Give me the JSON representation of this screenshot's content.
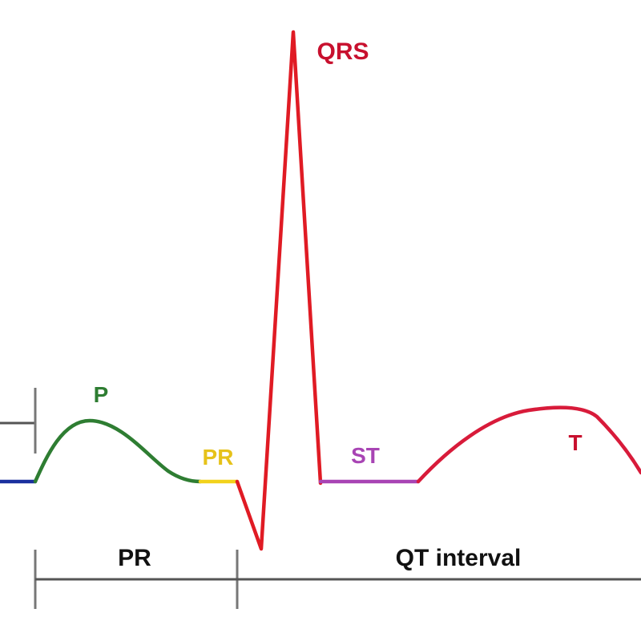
{
  "diagram": {
    "waves": {
      "baseline": {
        "color": "#1a2f9e"
      },
      "p": {
        "label": "P",
        "color": "#2e7d32"
      },
      "pr_segment": {
        "label": "PR",
        "color": "#f2d21b"
      },
      "qrs": {
        "label": "QRS",
        "color": "#e01b24"
      },
      "st_segment": {
        "label": "ST",
        "color": "#a844b4"
      },
      "t": {
        "label": "T",
        "color": "#d81b3a"
      }
    },
    "intervals": {
      "pr": {
        "label": "PR"
      },
      "qt": {
        "label": "QT interval"
      }
    },
    "label_colors": {
      "p": "#2e7d32",
      "pr_segment": "#e6c21a",
      "qrs": "#c8102e",
      "st_segment": "#a844b4",
      "t": "#c8102e",
      "intervals": "#111111"
    }
  }
}
